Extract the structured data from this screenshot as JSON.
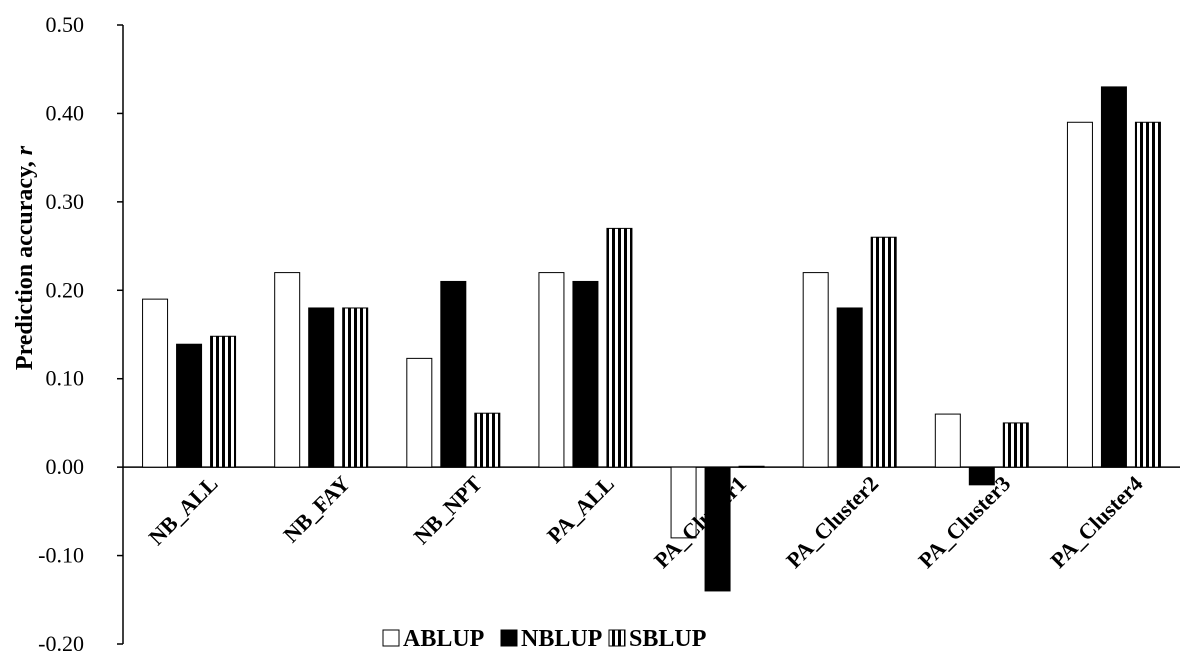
{
  "chart_data": {
    "type": "bar",
    "title": "",
    "xlabel": "",
    "ylabel": "Prediction accuracy, ",
    "ylabel_italic": "r",
    "ylim": [
      -0.2,
      0.5
    ],
    "yticks": [
      "0.50",
      "0.40",
      "0.30",
      "0.20",
      "0.10",
      "0.00",
      "-0.10",
      "-0.20"
    ],
    "ytick_values": [
      0.5,
      0.4,
      0.3,
      0.2,
      0.1,
      0.0,
      -0.1,
      -0.2
    ],
    "grid": false,
    "legend_position": "bottom",
    "categories": [
      "NB_ALL",
      "NB_FAY",
      "NB_NPT",
      "PA_ALL",
      "PA_Cluster1",
      "PA_Cluster2",
      "PA_Cluster3",
      "PA_Cluster4"
    ],
    "series": [
      {
        "name": "ABLUP",
        "pattern": "white",
        "values": [
          0.19,
          0.22,
          0.123,
          0.22,
          -0.08,
          0.22,
          0.06,
          0.39
        ]
      },
      {
        "name": "NBLUP",
        "pattern": "black",
        "values": [
          0.139,
          0.18,
          0.21,
          0.21,
          -0.14,
          0.18,
          -0.02,
          0.43
        ]
      },
      {
        "name": "SBLUP",
        "pattern": "vertical-stripes",
        "values": [
          0.148,
          0.18,
          0.061,
          0.27,
          0.001,
          0.26,
          0.05,
          0.39
        ]
      }
    ]
  }
}
